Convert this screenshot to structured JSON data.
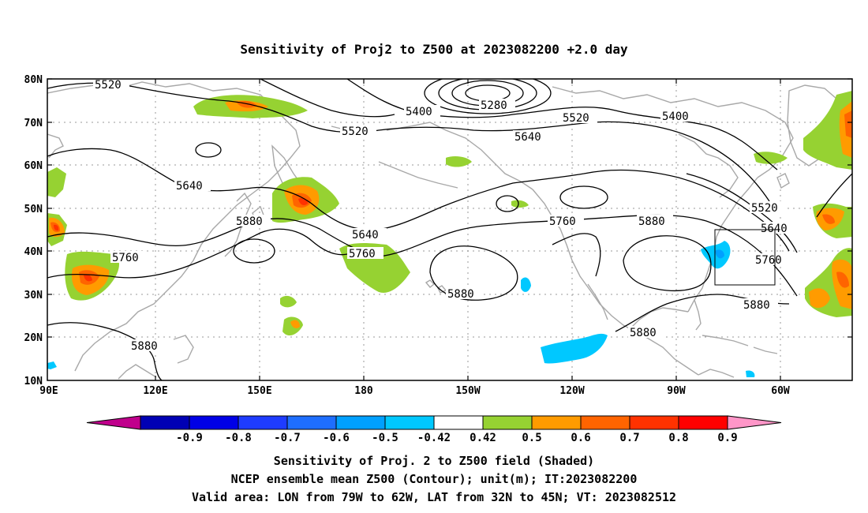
{
  "title": "Sensitivity of Proj2 to Z500 at 2023082200 +2.0 day",
  "lat_labels": [
    "80N",
    "70N",
    "60N",
    "50N",
    "40N",
    "30N",
    "20N",
    "10N"
  ],
  "lon_labels": [
    "90E",
    "120E",
    "150E",
    "180",
    "150W",
    "120W",
    "90W",
    "60W"
  ],
  "contour_labels": [
    "5520",
    "5400",
    "5280",
    "5520",
    "5400",
    "5520",
    "5640",
    "5640",
    "5880",
    "5640",
    "5760",
    "5760",
    "5880",
    "5880",
    "5760",
    "5520",
    "5640",
    "5760",
    "5880",
    "5880",
    "5880"
  ],
  "colorbar": {
    "ticks": [
      "-0.9",
      "-0.8",
      "-0.7",
      "-0.6",
      "-0.5",
      "-0.42",
      "0.42",
      "0.5",
      "0.6",
      "0.7",
      "0.8",
      "0.9"
    ],
    "colors": [
      "#c0008c",
      "#0000b4",
      "#0000e6",
      "#1e3cff",
      "#1e6eff",
      "#00a0ff",
      "#00c8ff",
      "#ffffff",
      "#96d232",
      "#ff9b00",
      "#ff6400",
      "#ff3200",
      "#ff0000",
      "#ff96c8"
    ]
  },
  "valid_area": {
    "lon_from": "79W",
    "lon_to": "62W",
    "lat_from": "32N",
    "lat_to": "45N"
  },
  "footer": [
    "Sensitivity of Proj. 2 to Z500 field (Shaded)",
    "NCEP ensemble mean Z500 (Contour); unit(m); IT:2023082200",
    "Valid area: LON from 79W to 62W, LAT from 32N to 45N; VT: 2023082512"
  ]
}
